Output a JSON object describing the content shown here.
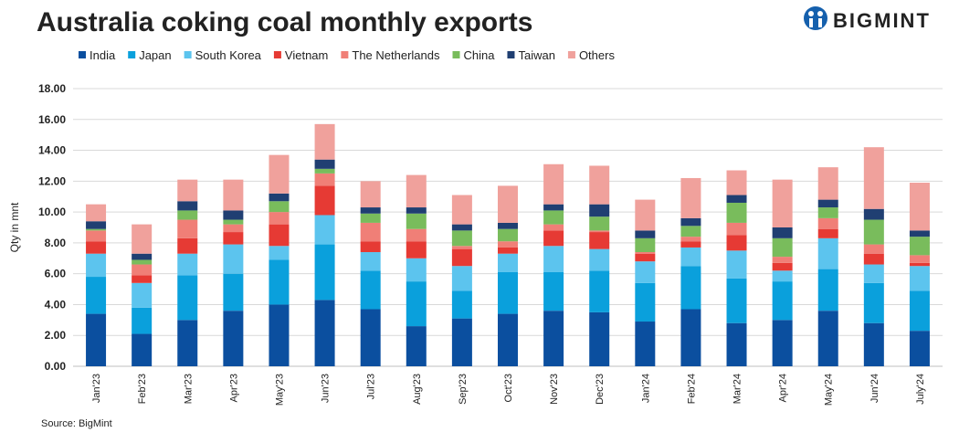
{
  "chart_data": {
    "type": "stacked-bar",
    "title": "Australia coking coal monthly exports",
    "logo": "BIGMINT",
    "source": "Source: BigMint",
    "y_label": "Qty in mnt",
    "grid": true,
    "legend": "top",
    "categories": [
      "Jan'23",
      "Feb'23",
      "Mar'23",
      "Apr'23",
      "May'23",
      "Jun'23",
      "Jul'23",
      "Aug'23",
      "Sep'23",
      "Oct'23",
      "Nov'23",
      "Dec'23",
      "Jan'24",
      "Feb'24",
      "Mar'24",
      "Apr'24",
      "May'24",
      "Jun'24",
      "July'24"
    ],
    "ylim": [
      0,
      18
    ],
    "yticks": [
      {
        "value": 0,
        "label": "0.00"
      },
      {
        "value": 2,
        "label": "2.00"
      },
      {
        "value": 4,
        "label": "4.00"
      },
      {
        "value": 6,
        "label": "6.00"
      },
      {
        "value": 8,
        "label": "8.00"
      },
      {
        "value": 10,
        "label": "10.00"
      },
      {
        "value": 12,
        "label": "12.00"
      },
      {
        "value": 14,
        "label": "14.00"
      },
      {
        "value": 16,
        "label": "16.00"
      },
      {
        "value": 18,
        "label": "18.00"
      }
    ],
    "series": [
      {
        "name": "India",
        "color": "#0b4f9f",
        "values": [
          3.4,
          2.1,
          3.0,
          3.6,
          4.0,
          4.3,
          3.7,
          2.6,
          3.1,
          3.4,
          3.6,
          3.5,
          2.9,
          3.7,
          2.8,
          3.0,
          3.6,
          2.8,
          2.3
        ]
      },
      {
        "name": "Japan",
        "color": "#0aa0dc",
        "values": [
          2.4,
          1.7,
          2.9,
          2.4,
          2.9,
          3.6,
          2.5,
          2.9,
          1.8,
          2.7,
          2.5,
          2.7,
          2.5,
          2.8,
          2.9,
          2.5,
          2.7,
          2.6,
          2.6
        ]
      },
      {
        "name": "South Korea",
        "color": "#5cc4ee",
        "values": [
          1.5,
          1.6,
          1.4,
          1.9,
          0.9,
          1.9,
          1.2,
          1.5,
          1.6,
          1.2,
          1.7,
          1.4,
          1.4,
          1.2,
          1.8,
          0.7,
          2.0,
          1.2,
          1.6
        ]
      },
      {
        "name": "Vietnam",
        "color": "#e63a34",
        "values": [
          0.8,
          0.5,
          1.0,
          0.8,
          1.4,
          1.9,
          0.7,
          1.1,
          1.1,
          0.4,
          1.0,
          1.1,
          0.5,
          0.4,
          1.0,
          0.5,
          0.6,
          0.7,
          0.2
        ]
      },
      {
        "name": "The Netherlands",
        "color": "#f07f77",
        "values": [
          0.7,
          0.7,
          1.2,
          0.5,
          0.8,
          0.8,
          1.2,
          0.8,
          0.2,
          0.4,
          0.4,
          0.1,
          0.1,
          0.3,
          0.8,
          0.4,
          0.7,
          0.6,
          0.5
        ]
      },
      {
        "name": "China",
        "color": "#79bc5c",
        "values": [
          0.1,
          0.3,
          0.6,
          0.3,
          0.7,
          0.3,
          0.6,
          1.0,
          1.0,
          0.8,
          0.9,
          0.9,
          0.9,
          0.7,
          1.3,
          1.2,
          0.7,
          1.6,
          1.2
        ]
      },
      {
        "name": "Taiwan",
        "color": "#203f72",
        "values": [
          0.5,
          0.4,
          0.6,
          0.6,
          0.5,
          0.6,
          0.4,
          0.4,
          0.4,
          0.4,
          0.4,
          0.8,
          0.5,
          0.5,
          0.5,
          0.7,
          0.5,
          0.7,
          0.4
        ]
      },
      {
        "name": "Others",
        "color": "#f0a19c",
        "values": [
          1.1,
          1.9,
          1.4,
          2.0,
          2.5,
          2.3,
          1.7,
          2.1,
          1.9,
          2.4,
          2.6,
          2.5,
          2.0,
          2.6,
          1.6,
          3.1,
          2.1,
          4.0,
          3.1
        ]
      }
    ]
  }
}
